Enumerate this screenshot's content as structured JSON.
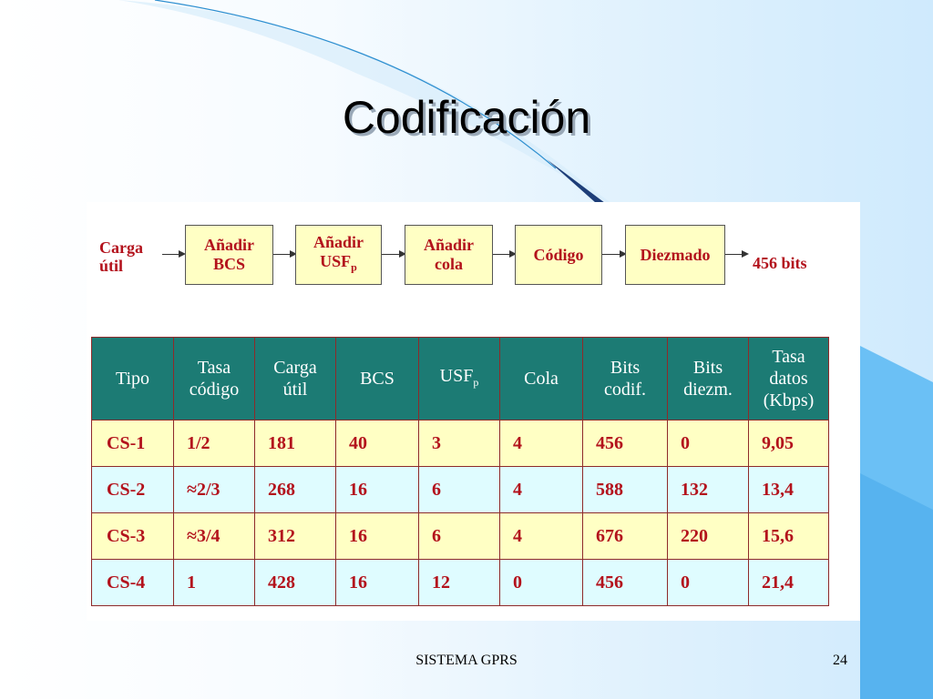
{
  "slide": {
    "title": "Codificación",
    "footer_label": "SISTEMA GPRS",
    "page_number": "24"
  },
  "diagram": {
    "input_label": [
      "Carga",
      "útil"
    ],
    "boxes": [
      {
        "line1": "Añadir",
        "line2": "BCS",
        "sub": ""
      },
      {
        "line1": "Añadir",
        "line2": "USF",
        "sub": "p"
      },
      {
        "line1": "Añadir",
        "line2": "cola",
        "sub": ""
      },
      {
        "line1": "Código",
        "line2": "",
        "sub": ""
      },
      {
        "line1": "Diezmado",
        "line2": "",
        "sub": ""
      }
    ],
    "output_label": "456 bits"
  },
  "table": {
    "headers": [
      {
        "l1": "Tipo",
        "l2": "",
        "l3": ""
      },
      {
        "l1": "Tasa",
        "l2": "código",
        "l3": ""
      },
      {
        "l1": "Carga",
        "l2": "útil",
        "l3": ""
      },
      {
        "l1": "BCS",
        "l2": "",
        "l3": ""
      },
      {
        "l1": "USF",
        "l2": "",
        "l3": "",
        "sub": "p"
      },
      {
        "l1": "Cola",
        "l2": "",
        "l3": ""
      },
      {
        "l1": "Bits",
        "l2": "codif.",
        "l3": ""
      },
      {
        "l1": "Bits",
        "l2": "diezm.",
        "l3": ""
      },
      {
        "l1": "Tasa",
        "l2": "datos",
        "l3": "(Kbps)"
      }
    ],
    "rows": [
      [
        "CS-1",
        "1/2",
        "181",
        "40",
        "3",
        "4",
        "456",
        "0",
        "9,05"
      ],
      [
        "CS-2",
        "≈2/3",
        "268",
        "16",
        "6",
        "4",
        "588",
        "132",
        "13,4"
      ],
      [
        "CS-3",
        "≈3/4",
        "312",
        "16",
        "6",
        "4",
        "676",
        "220",
        "15,6"
      ],
      [
        "CS-4",
        "1",
        "428",
        "16",
        "12",
        "0",
        "456",
        "0",
        "21,4"
      ]
    ],
    "row_colors": [
      "#ffffc4",
      "#dffcff"
    ]
  }
}
